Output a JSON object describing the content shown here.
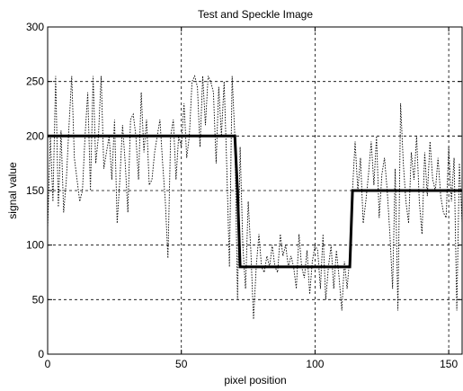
{
  "chart_data": {
    "type": "line",
    "title": "Test and Speckle Image",
    "xlabel": "pixel position",
    "ylabel": "signal value",
    "xlim": [
      0,
      155
    ],
    "ylim": [
      0,
      300
    ],
    "xticks": [
      0,
      50,
      100,
      150
    ],
    "yticks": [
      0,
      50,
      100,
      150,
      200,
      250,
      300
    ],
    "xtick_labels": [
      "0",
      "50",
      "100",
      "150"
    ],
    "ytick_labels": [
      "0",
      "50",
      "100",
      "150",
      "200",
      "250",
      "300"
    ],
    "grid": true,
    "legend": false,
    "series": [
      {
        "style": "solid-thick",
        "color": "#000000",
        "x": [
          0,
          70,
          71,
          72,
          113,
          114,
          155
        ],
        "y": [
          200,
          200,
          150,
          80,
          80,
          150,
          150
        ]
      },
      {
        "style": "dotted",
        "color": "#000000",
        "x": [
          0,
          1,
          2,
          3,
          4,
          5,
          6,
          7,
          8,
          9,
          10,
          11,
          12,
          13,
          14,
          15,
          16,
          17,
          18,
          19,
          20,
          21,
          22,
          23,
          24,
          25,
          26,
          27,
          28,
          29,
          30,
          31,
          32,
          33,
          34,
          35,
          36,
          37,
          38,
          39,
          40,
          41,
          42,
          43,
          44,
          45,
          46,
          47,
          48,
          49,
          50,
          51,
          52,
          53,
          54,
          55,
          56,
          57,
          58,
          59,
          60,
          61,
          62,
          63,
          64,
          65,
          66,
          67,
          68,
          69,
          70,
          71,
          72,
          73,
          74,
          75,
          76,
          77,
          78,
          79,
          80,
          81,
          82,
          83,
          84,
          85,
          86,
          87,
          88,
          89,
          90,
          91,
          92,
          93,
          94,
          95,
          96,
          97,
          98,
          99,
          100,
          101,
          102,
          103,
          104,
          105,
          106,
          107,
          108,
          109,
          110,
          111,
          112,
          113,
          114,
          115,
          116,
          117,
          118,
          119,
          120,
          121,
          122,
          123,
          124,
          125,
          126,
          127,
          128,
          129,
          130,
          131,
          132,
          133,
          134,
          135,
          136,
          137,
          138,
          139,
          140,
          141,
          142,
          143,
          144,
          145,
          146,
          147,
          148,
          149,
          150,
          151,
          152,
          153,
          154,
          155
        ],
        "y": [
          115,
          200,
          140,
          255,
          135,
          205,
          130,
          160,
          210,
          255,
          180,
          160,
          140,
          150,
          200,
          240,
          150,
          255,
          175,
          200,
          255,
          170,
          185,
          200,
          160,
          215,
          120,
          160,
          210,
          175,
          130,
          215,
          220,
          200,
          160,
          240,
          185,
          215,
          155,
          160,
          185,
          200,
          215,
          175,
          140,
          88,
          200,
          215,
          160,
          200,
          190,
          230,
          180,
          200,
          250,
          255,
          245,
          190,
          255,
          210,
          255,
          250,
          240,
          175,
          245,
          200,
          250,
          170,
          80,
          255,
          200,
          50,
          190,
          100,
          60,
          140,
          95,
          32,
          80,
          110,
          80,
          75,
          90,
          80,
          100,
          80,
          75,
          110,
          90,
          100,
          80,
          90,
          80,
          60,
          110,
          80,
          70,
          95,
          55,
          85,
          100,
          95,
          60,
          110,
          50,
          80,
          100,
          60,
          95,
          70,
          40,
          85,
          60,
          90,
          150,
          195,
          150,
          180,
          120,
          140,
          165,
          195,
          155,
          200,
          125,
          165,
          180,
          150,
          110,
          60,
          170,
          40,
          230,
          175,
          140,
          120,
          185,
          160,
          200,
          140,
          110,
          185,
          145,
          195,
          160,
          150,
          180,
          145,
          130,
          125,
          190,
          140,
          180,
          40,
          175,
          120
        ]
      }
    ]
  }
}
